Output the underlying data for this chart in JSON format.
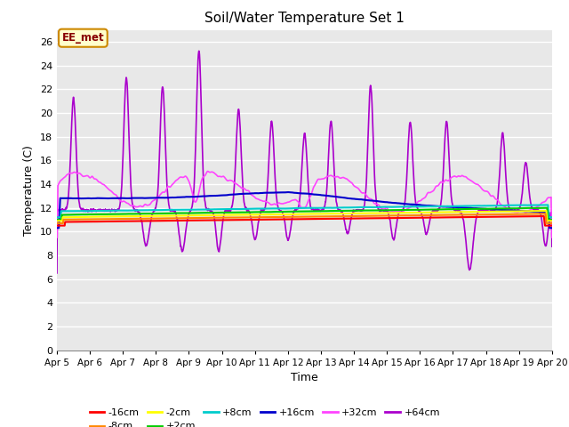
{
  "title": "Soil/Water Temperature Set 1",
  "xlabel": "Time",
  "ylabel": "Temperature (C)",
  "ylim": [
    0,
    27
  ],
  "yticks": [
    0,
    2,
    4,
    6,
    8,
    10,
    12,
    14,
    16,
    18,
    20,
    22,
    24,
    26
  ],
  "xlim": [
    0,
    15
  ],
  "xtick_labels": [
    "Apr 5",
    "Apr 6",
    "Apr 7",
    "Apr 8",
    "Apr 9",
    "Apr 10",
    "Apr 11",
    "Apr 12",
    "Apr 13",
    "Apr 14",
    "Apr 15",
    "Apr 16",
    "Apr 17",
    "Apr 18",
    "Apr 19",
    "Apr 20"
  ],
  "background_color": "#e8e8e8",
  "plot_bg_color": "#e8e8e8",
  "grid_color": "#ffffff",
  "series_colors": {
    "-16cm": "#ff0000",
    "-8cm": "#ff8800",
    "-2cm": "#ffff00",
    "+2cm": "#00cc00",
    "+8cm": "#00cccc",
    "+16cm": "#0000cc",
    "+32cm": "#ff44ff",
    "+64cm": "#aa00cc"
  },
  "annotation_text": "EE_met",
  "annotation_bg": "#ffffcc",
  "annotation_border": "#cc8800",
  "annotation_text_color": "#880000",
  "figsize": [
    6.4,
    4.8
  ],
  "dpi": 100
}
